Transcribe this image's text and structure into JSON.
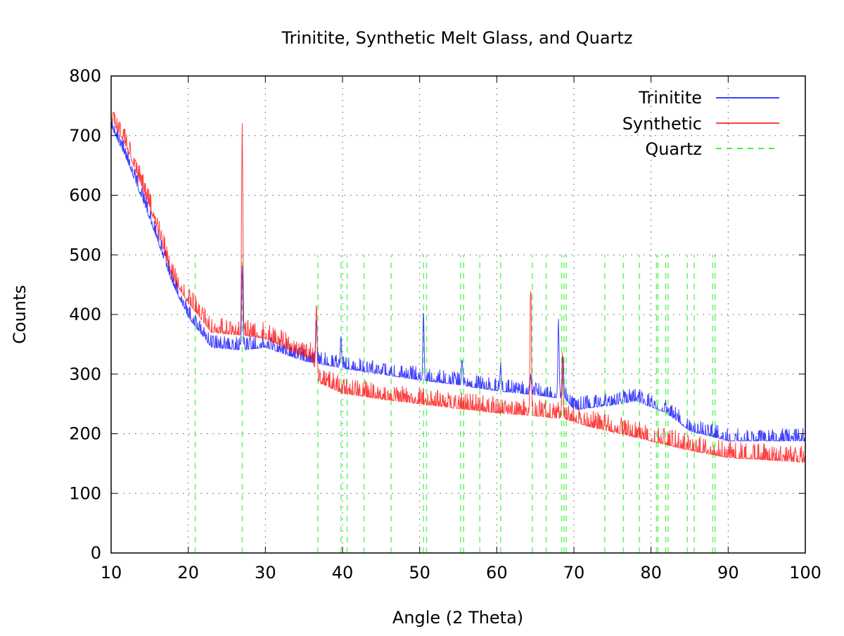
{
  "chart_data": {
    "type": "line",
    "title": "Trinitite, Synthetic Melt Glass, and Quartz",
    "xlabel": "Angle (2 Theta)",
    "ylabel": "Counts",
    "xlim": [
      10,
      100
    ],
    "ylim": [
      0,
      800
    ],
    "xticks": [
      10,
      20,
      30,
      40,
      50,
      60,
      70,
      80,
      90,
      100
    ],
    "yticks": [
      0,
      100,
      200,
      300,
      400,
      500,
      600,
      700,
      800
    ],
    "grid": true,
    "legend_position": "top-right",
    "step": 0.05,
    "series": [
      {
        "name": "Trinitite",
        "color": "#0000ff",
        "noise": 22,
        "baseline": [
          [
            10,
            715
          ],
          [
            12,
            660
          ],
          [
            15,
            560
          ],
          [
            18,
            450
          ],
          [
            20,
            395
          ],
          [
            23,
            345
          ],
          [
            27,
            340
          ],
          [
            30,
            345
          ],
          [
            35,
            322
          ],
          [
            40,
            310
          ],
          [
            45,
            300
          ],
          [
            50,
            290
          ],
          [
            55,
            282
          ],
          [
            60,
            272
          ],
          [
            65,
            265
          ],
          [
            69,
            258
          ],
          [
            70,
            240
          ],
          [
            75,
            248
          ],
          [
            78,
            255
          ],
          [
            82,
            235
          ],
          [
            85,
            205
          ],
          [
            90,
            188
          ],
          [
            100,
            188
          ]
        ],
        "peaks": [
          [
            27.0,
            500
          ],
          [
            36.6,
            400
          ],
          [
            39.8,
            370
          ],
          [
            50.5,
            410
          ],
          [
            55.5,
            330
          ],
          [
            60.5,
            320
          ],
          [
            64.4,
            300
          ],
          [
            68.0,
            400
          ],
          [
            68.6,
            340
          ]
        ]
      },
      {
        "name": "Synthetic",
        "color": "#ff0000",
        "noise": 28,
        "baseline": [
          [
            10,
            730
          ],
          [
            12,
            680
          ],
          [
            15,
            580
          ],
          [
            18,
            460
          ],
          [
            20,
            420
          ],
          [
            23,
            370
          ],
          [
            27,
            365
          ],
          [
            30,
            360
          ],
          [
            34,
            335
          ],
          [
            36,
            325
          ],
          [
            37,
            285
          ],
          [
            40,
            268
          ],
          [
            45,
            258
          ],
          [
            50,
            250
          ],
          [
            55,
            242
          ],
          [
            60,
            235
          ],
          [
            65,
            230
          ],
          [
            69,
            224
          ],
          [
            72,
            212
          ],
          [
            80,
            188
          ],
          [
            85,
            172
          ],
          [
            90,
            160
          ],
          [
            100,
            152
          ]
        ],
        "peaks": [
          [
            27.0,
            738
          ],
          [
            36.6,
            430
          ],
          [
            64.4,
            472
          ],
          [
            68.5,
            340
          ]
        ]
      }
    ],
    "reference_lines": {
      "name": "Quartz",
      "color": "#00ee00",
      "height": 500,
      "x": [
        20.9,
        27.0,
        36.8,
        39.8,
        40.6,
        42.8,
        46.3,
        50.5,
        50.9,
        55.3,
        55.7,
        57.8,
        60.5,
        64.6,
        66.4,
        68.4,
        68.7,
        69.0,
        74.0,
        76.4,
        78.5,
        80.7,
        80.9,
        81.9,
        82.2,
        84.7,
        85.6,
        88.0,
        88.3
      ]
    }
  }
}
